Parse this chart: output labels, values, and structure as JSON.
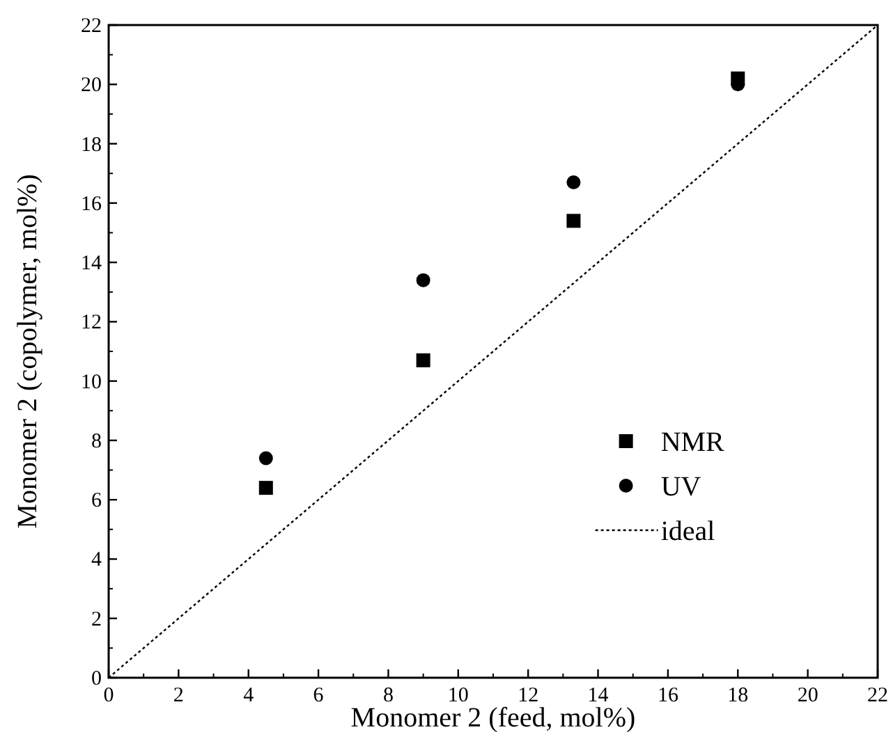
{
  "chart_data": {
    "type": "scatter",
    "xlabel": "Monomer 2 (feed, mol%)",
    "ylabel": "Monomer 2 (copolymer, mol%)",
    "xlim": [
      0,
      22
    ],
    "ylim": [
      0,
      22
    ],
    "xticks": [
      0,
      2,
      4,
      6,
      8,
      10,
      12,
      14,
      16,
      18,
      20,
      22
    ],
    "yticks": [
      0,
      2,
      4,
      6,
      8,
      10,
      12,
      14,
      16,
      18,
      20,
      22
    ],
    "legend": "bottom right",
    "series": [
      {
        "name": "NMR",
        "color": "#000000",
        "marker": "square",
        "x": [
          4.5,
          9,
          13.3,
          18
        ],
        "values": [
          6.4,
          10.7,
          15.4,
          20.2
        ]
      },
      {
        "name": "UV",
        "color": "#000000",
        "marker": "circle",
        "x": [
          4.5,
          9,
          13.3,
          18
        ],
        "values": [
          7.4,
          13.4,
          16.7,
          20.0
        ]
      },
      {
        "name": "ideal",
        "type": "line",
        "color": "#000000",
        "line_style": "dotted",
        "marker": "none",
        "x": [
          0,
          22
        ],
        "values": [
          0,
          22
        ]
      }
    ]
  }
}
